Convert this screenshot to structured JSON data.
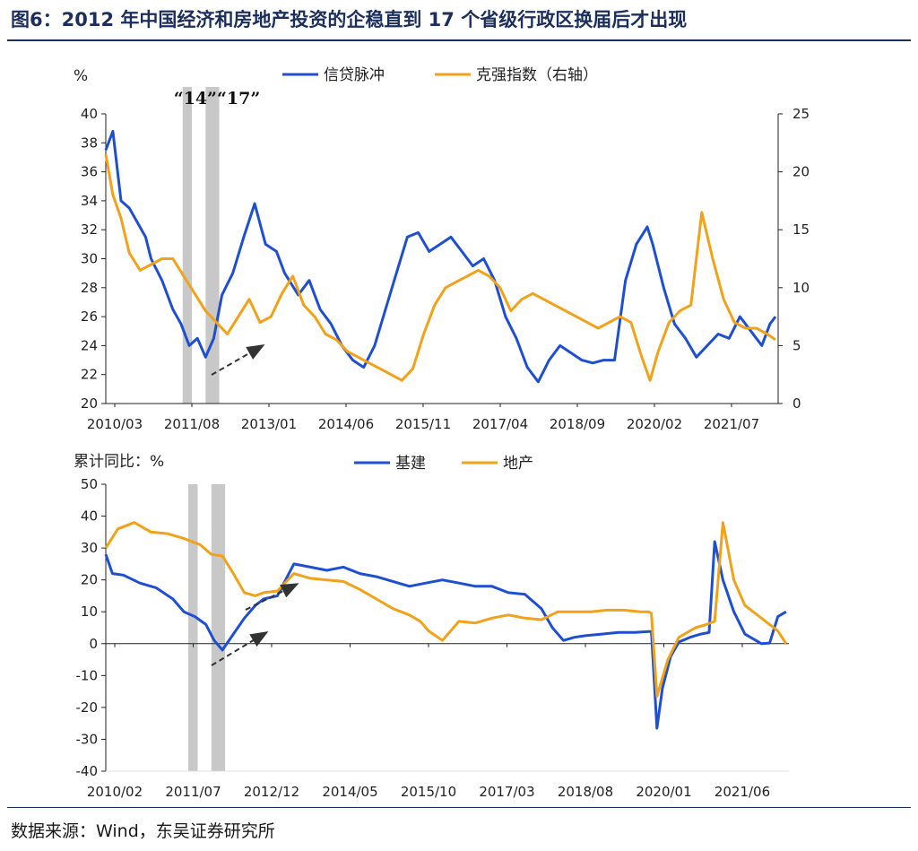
{
  "figure": {
    "title": "图6：2012 年中国经济和房地产投资的企稳直到 17 个省级行政区换届后才出现",
    "source": "数据来源：Wind，东吴证券研究所",
    "annotation": "“14”“17”"
  },
  "colors": {
    "blue": "#1f4fd1",
    "orange": "#f0a21a",
    "band": "#c8c8c8",
    "axis": "#222222",
    "arrow": "#333333"
  },
  "chart_data": [
    {
      "type": "line",
      "unit_label": "%",
      "x_tick_labels": [
        "2010/03",
        "2011/08",
        "2013/01",
        "2014/06",
        "2015/11",
        "2017/04",
        "2018/09",
        "2020/02",
        "2021/07"
      ],
      "x_range": [
        2010.17,
        2022.5
      ],
      "ylim_left": [
        20,
        40
      ],
      "y_ticks_left": [
        "20",
        "22",
        "24",
        "26",
        "28",
        "30",
        "32",
        "34",
        "36",
        "38",
        "40"
      ],
      "ylim_right": [
        0,
        25
      ],
      "y_ticks_right": [
        "0",
        "5",
        "10",
        "15",
        "20",
        "25"
      ],
      "series": [
        {
          "name": "信贷脉冲",
          "axis": "left",
          "x": [
            2010.17,
            2010.3,
            2010.45,
            2010.6,
            2010.75,
            2010.9,
            2011.0,
            2011.2,
            2011.4,
            2011.55,
            2011.7,
            2011.85,
            2012.0,
            2012.15,
            2012.3,
            2012.5,
            2012.7,
            2012.9,
            2013.1,
            2013.3,
            2013.45,
            2013.7,
            2013.9,
            2014.1,
            2014.3,
            2014.5,
            2014.7,
            2014.9,
            2015.1,
            2015.3,
            2015.5,
            2015.7,
            2015.9,
            2016.1,
            2016.3,
            2016.5,
            2016.7,
            2016.9,
            2017.1,
            2017.3,
            2017.5,
            2017.7,
            2017.9,
            2018.1,
            2018.3,
            2018.5,
            2018.7,
            2018.9,
            2019.1,
            2019.3,
            2019.5,
            2019.7,
            2019.9,
            2020.1,
            2020.2,
            2020.4,
            2020.6,
            2020.8,
            2021.0,
            2021.2,
            2021.4,
            2021.6,
            2021.8,
            2022.0,
            2022.2,
            2022.35,
            2022.45
          ],
          "values": [
            37.5,
            38.8,
            34.0,
            33.5,
            32.5,
            31.5,
            30.0,
            28.5,
            26.5,
            25.5,
            24.0,
            24.5,
            23.2,
            24.5,
            27.5,
            29.0,
            31.5,
            33.8,
            31.0,
            30.5,
            29.0,
            27.5,
            28.5,
            26.5,
            25.5,
            24.0,
            23.0,
            22.5,
            24.0,
            26.5,
            29.0,
            31.5,
            31.8,
            30.5,
            31.0,
            31.5,
            30.5,
            29.5,
            30.0,
            28.5,
            26.0,
            24.5,
            22.5,
            21.5,
            23.0,
            24.0,
            23.5,
            23.0,
            22.8,
            23.0,
            23.0,
            28.5,
            31.0,
            32.2,
            31.0,
            28.0,
            25.5,
            24.5,
            23.2,
            24.0,
            24.8,
            24.5,
            26.0,
            25.0,
            24.0,
            25.5,
            26.0
          ]
        },
        {
          "name": "克强指数（右轴）",
          "axis": "right",
          "x": [
            2010.17,
            2010.3,
            2010.45,
            2010.6,
            2010.8,
            2011.0,
            2011.2,
            2011.4,
            2011.6,
            2011.8,
            2012.0,
            2012.2,
            2012.4,
            2012.6,
            2012.8,
            2013.0,
            2013.2,
            2013.4,
            2013.6,
            2013.8,
            2014.0,
            2014.2,
            2014.4,
            2014.6,
            2014.8,
            2015.0,
            2015.2,
            2015.4,
            2015.6,
            2015.8,
            2016.0,
            2016.2,
            2016.4,
            2016.6,
            2016.8,
            2017.0,
            2017.2,
            2017.4,
            2017.6,
            2017.8,
            2018.0,
            2018.2,
            2018.4,
            2018.6,
            2018.8,
            2019.0,
            2019.2,
            2019.4,
            2019.6,
            2019.8,
            2020.0,
            2020.15,
            2020.3,
            2020.5,
            2020.7,
            2020.9,
            2021.1,
            2021.3,
            2021.5,
            2021.7,
            2021.9,
            2022.1,
            2022.3,
            2022.45
          ],
          "values": [
            21.5,
            18.0,
            16.0,
            13.0,
            11.5,
            12.0,
            12.5,
            12.5,
            11.0,
            9.5,
            8.0,
            7.0,
            6.0,
            7.5,
            9.0,
            7.0,
            7.5,
            9.5,
            11.0,
            8.5,
            7.5,
            6.0,
            5.5,
            4.5,
            4.0,
            3.5,
            3.0,
            2.5,
            2.0,
            3.0,
            6.0,
            8.5,
            10.0,
            10.5,
            11.0,
            11.5,
            11.0,
            10.0,
            8.0,
            9.0,
            9.5,
            9.0,
            8.5,
            8.0,
            7.5,
            7.0,
            6.5,
            7.0,
            7.5,
            7.0,
            4.0,
            2.0,
            4.5,
            7.0,
            8.0,
            8.5,
            16.5,
            12.5,
            9.0,
            7.0,
            6.5,
            6.5,
            6.0,
            5.5
          ]
        }
      ],
      "highlight_bands": [
        [
          2011.58,
          2011.75
        ],
        [
          2012.0,
          2012.25
        ]
      ]
    },
    {
      "type": "line",
      "unit_label": "累计同比：%",
      "x_tick_labels": [
        "2010/02",
        "2011/07",
        "2012/12",
        "2014/05",
        "2015/10",
        "2017/03",
        "2018/08",
        "2020/01",
        "2021/06"
      ],
      "x_range": [
        2010.08,
        2022.5
      ],
      "ylim": [
        -40,
        50
      ],
      "y_ticks": [
        "-40",
        "-30",
        "-20",
        "-10",
        "0",
        "10",
        "20",
        "30",
        "40",
        "50"
      ],
      "series": [
        {
          "name": "基建",
          "x": [
            2010.08,
            2010.2,
            2010.4,
            2010.7,
            2011.0,
            2011.3,
            2011.5,
            2011.7,
            2011.9,
            2012.05,
            2012.2,
            2012.4,
            2012.6,
            2012.8,
            2012.95,
            2013.2,
            2013.5,
            2013.8,
            2014.1,
            2014.4,
            2014.7,
            2015.0,
            2015.3,
            2015.6,
            2015.9,
            2016.2,
            2016.5,
            2016.8,
            2017.1,
            2017.4,
            2017.7,
            2018.0,
            2018.2,
            2018.4,
            2018.6,
            2018.8,
            2019.1,
            2019.4,
            2019.7,
            2019.95,
            2020.0,
            2020.1,
            2020.2,
            2020.35,
            2020.5,
            2020.7,
            2020.9,
            2021.05,
            2021.15,
            2021.3,
            2021.5,
            2021.7,
            2021.9,
            2022.0,
            2022.15,
            2022.3,
            2022.45
          ],
          "values": [
            28.0,
            22.0,
            21.5,
            19.0,
            17.5,
            14.0,
            10.0,
            8.5,
            6.0,
            1.0,
            -2.0,
            3.0,
            8.0,
            12.0,
            14.0,
            15.0,
            25.0,
            24.0,
            23.0,
            24.0,
            22.0,
            21.0,
            19.5,
            18.0,
            19.0,
            20.0,
            19.0,
            18.0,
            18.0,
            16.0,
            15.5,
            11.0,
            5.0,
            1.0,
            2.0,
            2.5,
            3.0,
            3.5,
            3.5,
            3.8,
            3.8,
            -26.5,
            -14.0,
            -4.0,
            0.5,
            2.0,
            3.0,
            3.5,
            32.0,
            20.0,
            10.0,
            3.0,
            1.0,
            0.0,
            0.2,
            8.5,
            10.0
          ]
        },
        {
          "name": "地产",
          "x": [
            2010.08,
            2010.3,
            2010.6,
            2010.9,
            2011.2,
            2011.5,
            2011.8,
            2012.0,
            2012.2,
            2012.4,
            2012.6,
            2012.8,
            2012.95,
            2013.2,
            2013.5,
            2013.8,
            2014.1,
            2014.4,
            2014.7,
            2015.0,
            2015.3,
            2015.6,
            2015.8,
            2015.95,
            2016.2,
            2016.5,
            2016.8,
            2017.1,
            2017.4,
            2017.7,
            2018.0,
            2018.3,
            2018.6,
            2018.9,
            2019.2,
            2019.5,
            2019.8,
            2019.95,
            2020.0,
            2020.1,
            2020.3,
            2020.5,
            2020.8,
            2021.0,
            2021.15,
            2021.3,
            2021.5,
            2021.7,
            2022.0,
            2022.3,
            2022.45
          ],
          "values": [
            30.0,
            36.0,
            38.0,
            35.0,
            34.5,
            33.0,
            31.0,
            28.0,
            27.5,
            22.0,
            16.0,
            15.0,
            16.0,
            16.5,
            22.0,
            20.5,
            20.0,
            19.5,
            17.0,
            14.0,
            11.0,
            9.0,
            7.0,
            4.0,
            1.0,
            7.0,
            6.5,
            8.0,
            9.0,
            8.0,
            7.5,
            10.0,
            10.0,
            10.0,
            10.5,
            10.5,
            10.0,
            10.0,
            9.5,
            -16.5,
            -5.0,
            2.0,
            5.0,
            6.0,
            7.0,
            38.0,
            20.0,
            12.0,
            8.0,
            4.0,
            0.0
          ]
        }
      ],
      "highlight_bands": [
        [
          2011.58,
          2011.75
        ],
        [
          2012.0,
          2012.25
        ]
      ]
    }
  ]
}
